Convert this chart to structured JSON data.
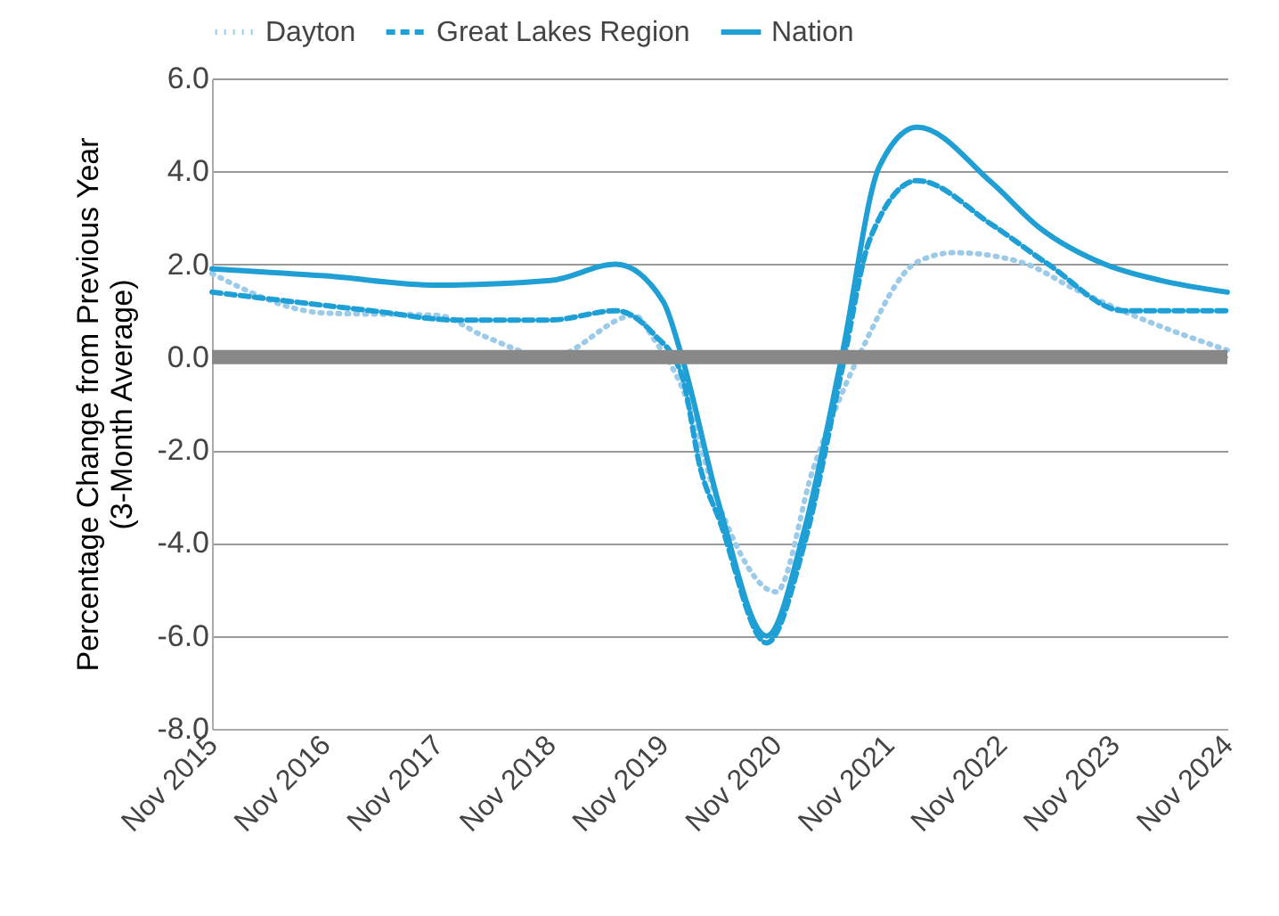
{
  "chart_data": {
    "type": "line",
    "ylabel": "Percentage Change from Previous Year\n(3-Month Average)",
    "xlim": [
      "2015-11",
      "2024-11"
    ],
    "xticks": [
      {
        "value": "2015-11",
        "label": "Nov 2015"
      },
      {
        "value": "2016-11",
        "label": "Nov 2016"
      },
      {
        "value": "2017-11",
        "label": "Nov 2017"
      },
      {
        "value": "2018-11",
        "label": "Nov 2018"
      },
      {
        "value": "2019-11",
        "label": "Nov 2019"
      },
      {
        "value": "2020-11",
        "label": "Nov 2020"
      },
      {
        "value": "2021-11",
        "label": "Nov 2021"
      },
      {
        "value": "2022-11",
        "label": "Nov 2022"
      },
      {
        "value": "2023-11",
        "label": "Nov 2023"
      },
      {
        "value": "2024-11",
        "label": "Nov 2024"
      }
    ],
    "ylim": [
      -8,
      6
    ],
    "yticks": [
      {
        "value": -8,
        "label": "-8.0"
      },
      {
        "value": -6,
        "label": "-6.0"
      },
      {
        "value": -4,
        "label": "-4.0"
      },
      {
        "value": -2,
        "label": "-2.0"
      },
      {
        "value": 0,
        "label": "0.0"
      },
      {
        "value": 2,
        "label": "2.0"
      },
      {
        "value": 4,
        "label": "4.0"
      },
      {
        "value": 6,
        "label": "6.0"
      }
    ],
    "grid": "y",
    "legend": "top",
    "marker": "none",
    "ref_lines": [
      {
        "axis": "y",
        "value": 0,
        "color": "#888888"
      }
    ],
    "series": [
      {
        "name": "Dayton",
        "color": "#9ccbea",
        "line_style": "dotted",
        "x": [
          "2015-11",
          "2016-11",
          "2017-11",
          "2018-04",
          "2018-11",
          "2019-08",
          "2019-10",
          "2020-01",
          "2020-05",
          "2020-11",
          "2021-03",
          "2021-08",
          "2022-02",
          "2022-06",
          "2023-01",
          "2023-07",
          "2024-01",
          "2024-11"
        ],
        "values": [
          1.8,
          0.95,
          0.9,
          0.45,
          0.0,
          0.9,
          0.4,
          -0.65,
          -3.2,
          -5.05,
          -2.4,
          0.1,
          2.05,
          2.25,
          2.05,
          1.45,
          0.9,
          0.15
        ]
      },
      {
        "name": "Great Lakes Region",
        "color": "#1e9fd6",
        "line_style": "dashed",
        "x": [
          "2015-11",
          "2017-04",
          "2018-01",
          "2018-11",
          "2019-06",
          "2019-10",
          "2020-01",
          "2020-03",
          "2020-05",
          "2020-10",
          "2021-02",
          "2021-06",
          "2021-09",
          "2022-02",
          "2022-10",
          "2023-04",
          "2023-12",
          "2024-11"
        ],
        "values": [
          1.4,
          1.0,
          0.8,
          0.8,
          1.0,
          0.5,
          -0.4,
          -2.4,
          -3.5,
          -6.15,
          -4.0,
          -0.3,
          2.55,
          3.8,
          2.85,
          2.0,
          1.0,
          1.0
        ]
      },
      {
        "name": "Nation",
        "color": "#1f9fd4",
        "line_style": "solid",
        "x": [
          "2015-11",
          "2016-11",
          "2017-11",
          "2018-11",
          "2019-06",
          "2019-11",
          "2020-01",
          "2020-05",
          "2020-10",
          "2021-02",
          "2021-06",
          "2021-10",
          "2022-02",
          "2022-10",
          "2023-03",
          "2023-10",
          "2024-04",
          "2024-11"
        ],
        "values": [
          1.9,
          1.75,
          1.55,
          1.65,
          2.0,
          1.2,
          0.0,
          -3.2,
          -6.0,
          -3.7,
          0.0,
          4.1,
          4.95,
          3.75,
          2.8,
          2.0,
          1.65,
          1.4
        ]
      }
    ]
  }
}
